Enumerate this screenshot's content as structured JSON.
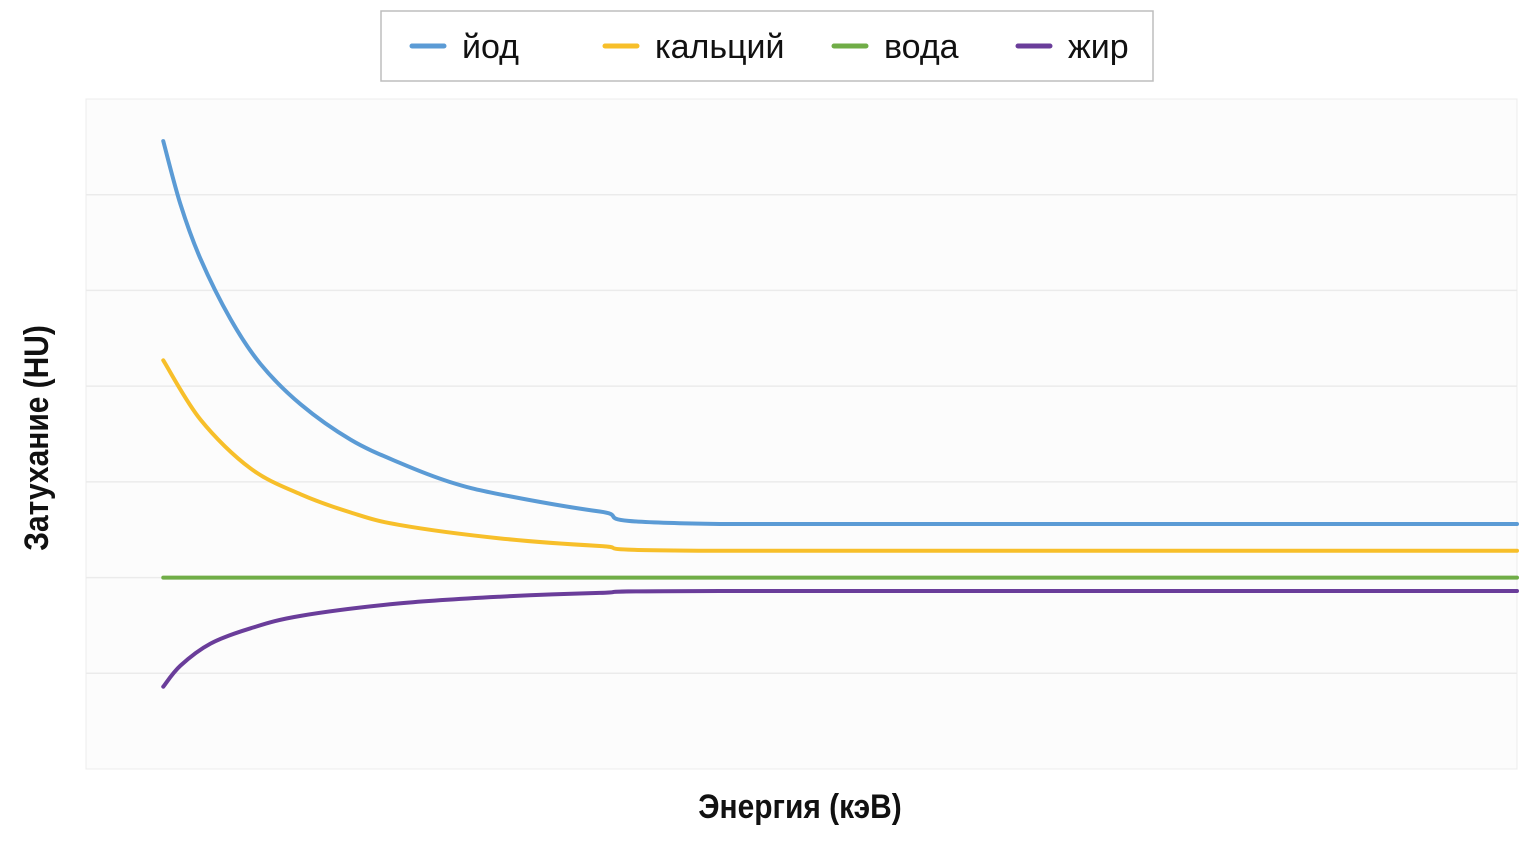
{
  "chart_data": {
    "type": "line",
    "title": "",
    "xlabel": "Энергия (кэВ)",
    "ylabel": "Затухание (HU)",
    "xlim": [
      0,
      100
    ],
    "ylim": [
      0,
      7
    ],
    "grid": {
      "horizontal": true,
      "vertical": false
    },
    "tick_labels_shown": false,
    "legend": {
      "placement": "top"
    },
    "series": [
      {
        "name": "йод",
        "color": "#5b9bd5",
        "x": [
          5.4,
          6.6,
          8.0,
          10.1,
          12.2,
          15.0,
          18.5,
          21.9,
          25.4,
          28.9,
          35.9,
          44.3,
          100
        ],
        "y": [
          6.56,
          5.9,
          5.33,
          4.7,
          4.23,
          3.81,
          3.44,
          3.2,
          3.0,
          2.87,
          2.69,
          2.56,
          2.56
        ]
      },
      {
        "name": "кальций",
        "color": "#f7bf2a",
        "x": [
          5.4,
          8.0,
          11.5,
          15.0,
          18.5,
          21.9,
          28.9,
          35.9,
          44.3,
          100
        ],
        "y": [
          4.27,
          3.65,
          3.14,
          2.87,
          2.68,
          2.55,
          2.41,
          2.33,
          2.28,
          2.28
        ]
      },
      {
        "name": "вода",
        "color": "#70ad47",
        "x": [
          5.4,
          100
        ],
        "y": [
          2.0,
          2.0
        ]
      },
      {
        "name": "жир",
        "color": "#6a3d9a",
        "x": [
          5.4,
          6.6,
          8.7,
          11.5,
          15.0,
          21.9,
          28.9,
          35.9,
          44.3,
          100
        ],
        "y": [
          0.86,
          1.08,
          1.31,
          1.47,
          1.6,
          1.73,
          1.8,
          1.84,
          1.86,
          1.86
        ]
      }
    ]
  }
}
